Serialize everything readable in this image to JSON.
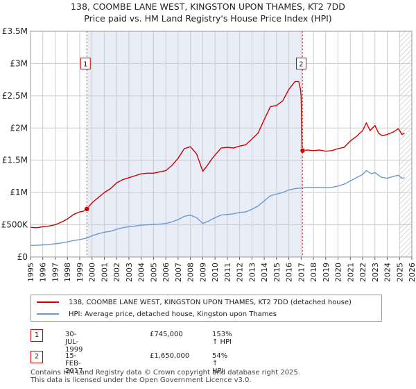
{
  "title_line1": "138, COOMBE LANE WEST, KINGSTON UPON THAMES, KT2 7DD",
  "title_line2": "Price paid vs. HM Land Registry's House Price Index (HPI)",
  "chart_data": {
    "type": "line",
    "x_min": 1995,
    "x_max": 2026,
    "y_min": 0,
    "y_max": 3500000,
    "y_ticks": [
      {
        "value": 0,
        "label": "£0"
      },
      {
        "value": 500000,
        "label": "£500K"
      },
      {
        "value": 1000000,
        "label": "£1M"
      },
      {
        "value": 1500000,
        "label": "£1.5M"
      },
      {
        "value": 2000000,
        "label": "£2M"
      },
      {
        "value": 2500000,
        "label": "£2.5M"
      },
      {
        "value": 3000000,
        "label": "£3M"
      },
      {
        "value": 3500000,
        "label": "£3.5M"
      }
    ],
    "x_ticks": [
      "1995",
      "1996",
      "1997",
      "1998",
      "1999",
      "2000",
      "2001",
      "2002",
      "2003",
      "2004",
      "2005",
      "2006",
      "2007",
      "2008",
      "2009",
      "2010",
      "2011",
      "2012",
      "2013",
      "2014",
      "2015",
      "2016",
      "2017",
      "2018",
      "2019",
      "2020",
      "2021",
      "2022",
      "2023",
      "2024",
      "2025",
      "2026"
    ],
    "shaded_range": [
      1999.58,
      2017.12
    ],
    "hatched_from": 2025.0,
    "series": [
      {
        "name": "138, COOMBE LANE WEST, KINGSTON UPON THAMES, KT2 7DD (detached house)",
        "color": "#cc0000",
        "points": [
          [
            1995.0,
            460000
          ],
          [
            1995.5,
            455000
          ],
          [
            1996.0,
            470000
          ],
          [
            1996.5,
            480000
          ],
          [
            1997.0,
            500000
          ],
          [
            1997.5,
            540000
          ],
          [
            1998.0,
            590000
          ],
          [
            1998.5,
            660000
          ],
          [
            1999.0,
            700000
          ],
          [
            1999.3,
            710000
          ],
          [
            1999.58,
            745000
          ],
          [
            2000.0,
            840000
          ],
          [
            2000.5,
            920000
          ],
          [
            2001.0,
            1000000
          ],
          [
            2001.5,
            1060000
          ],
          [
            2002.0,
            1150000
          ],
          [
            2002.5,
            1200000
          ],
          [
            2003.0,
            1230000
          ],
          [
            2003.5,
            1260000
          ],
          [
            2004.0,
            1290000
          ],
          [
            2004.5,
            1300000
          ],
          [
            2005.0,
            1300000
          ],
          [
            2005.5,
            1320000
          ],
          [
            2006.0,
            1340000
          ],
          [
            2006.5,
            1420000
          ],
          [
            2007.0,
            1530000
          ],
          [
            2007.5,
            1680000
          ],
          [
            2008.0,
            1710000
          ],
          [
            2008.5,
            1600000
          ],
          [
            2009.0,
            1330000
          ],
          [
            2009.3,
            1400000
          ],
          [
            2009.7,
            1510000
          ],
          [
            2010.0,
            1580000
          ],
          [
            2010.5,
            1690000
          ],
          [
            2011.0,
            1700000
          ],
          [
            2011.5,
            1690000
          ],
          [
            2012.0,
            1720000
          ],
          [
            2012.5,
            1740000
          ],
          [
            2013.0,
            1830000
          ],
          [
            2013.5,
            1920000
          ],
          [
            2014.0,
            2130000
          ],
          [
            2014.5,
            2330000
          ],
          [
            2015.0,
            2350000
          ],
          [
            2015.5,
            2420000
          ],
          [
            2016.0,
            2600000
          ],
          [
            2016.5,
            2720000
          ],
          [
            2016.8,
            2720000
          ],
          [
            2016.95,
            2600000
          ],
          [
            2017.0,
            2500000
          ],
          [
            2017.08,
            1700000
          ],
          [
            2017.12,
            1650000
          ],
          [
            2017.5,
            1660000
          ],
          [
            2018.0,
            1650000
          ],
          [
            2018.5,
            1660000
          ],
          [
            2019.0,
            1640000
          ],
          [
            2019.5,
            1650000
          ],
          [
            2020.0,
            1680000
          ],
          [
            2020.5,
            1700000
          ],
          [
            2021.0,
            1800000
          ],
          [
            2021.5,
            1870000
          ],
          [
            2022.0,
            1960000
          ],
          [
            2022.3,
            2080000
          ],
          [
            2022.6,
            1960000
          ],
          [
            2023.0,
            2040000
          ],
          [
            2023.3,
            1920000
          ],
          [
            2023.6,
            1880000
          ],
          [
            2024.0,
            1900000
          ],
          [
            2024.5,
            1940000
          ],
          [
            2024.9,
            1990000
          ],
          [
            2025.2,
            1900000
          ],
          [
            2025.4,
            1920000
          ]
        ]
      },
      {
        "name": "HPI: Average price, detached house, Kingston upon Thames",
        "color": "#6a9acb",
        "points": [
          [
            1995.0,
            180000
          ],
          [
            1995.5,
            182000
          ],
          [
            1996.0,
            188000
          ],
          [
            1996.5,
            195000
          ],
          [
            1997.0,
            205000
          ],
          [
            1997.5,
            218000
          ],
          [
            1998.0,
            235000
          ],
          [
            1998.5,
            255000
          ],
          [
            1999.0,
            270000
          ],
          [
            1999.58,
            294000
          ],
          [
            2000.0,
            330000
          ],
          [
            2000.5,
            360000
          ],
          [
            2001.0,
            385000
          ],
          [
            2001.5,
            400000
          ],
          [
            2002.0,
            430000
          ],
          [
            2002.5,
            455000
          ],
          [
            2003.0,
            470000
          ],
          [
            2003.5,
            480000
          ],
          [
            2004.0,
            495000
          ],
          [
            2004.5,
            500000
          ],
          [
            2005.0,
            505000
          ],
          [
            2005.5,
            510000
          ],
          [
            2006.0,
            520000
          ],
          [
            2006.5,
            545000
          ],
          [
            2007.0,
            580000
          ],
          [
            2007.5,
            630000
          ],
          [
            2008.0,
            650000
          ],
          [
            2008.5,
            610000
          ],
          [
            2009.0,
            520000
          ],
          [
            2009.5,
            560000
          ],
          [
            2010.0,
            610000
          ],
          [
            2010.5,
            650000
          ],
          [
            2011.0,
            660000
          ],
          [
            2011.5,
            670000
          ],
          [
            2012.0,
            690000
          ],
          [
            2012.5,
            700000
          ],
          [
            2013.0,
            740000
          ],
          [
            2013.5,
            790000
          ],
          [
            2014.0,
            870000
          ],
          [
            2014.5,
            950000
          ],
          [
            2015.0,
            975000
          ],
          [
            2015.5,
            1000000
          ],
          [
            2016.0,
            1040000
          ],
          [
            2016.5,
            1060000
          ],
          [
            2017.12,
            1070000
          ],
          [
            2017.5,
            1080000
          ],
          [
            2018.0,
            1080000
          ],
          [
            2018.5,
            1080000
          ],
          [
            2019.0,
            1075000
          ],
          [
            2019.5,
            1080000
          ],
          [
            2020.0,
            1100000
          ],
          [
            2020.5,
            1130000
          ],
          [
            2021.0,
            1180000
          ],
          [
            2021.5,
            1230000
          ],
          [
            2022.0,
            1280000
          ],
          [
            2022.3,
            1340000
          ],
          [
            2022.7,
            1290000
          ],
          [
            2023.0,
            1310000
          ],
          [
            2023.5,
            1240000
          ],
          [
            2024.0,
            1220000
          ],
          [
            2024.5,
            1250000
          ],
          [
            2024.9,
            1270000
          ],
          [
            2025.2,
            1220000
          ],
          [
            2025.4,
            1230000
          ]
        ]
      }
    ],
    "markers": [
      {
        "label": "1",
        "x": 1999.58,
        "y": 745000,
        "box_value": 3000000
      },
      {
        "label": "2",
        "x": 2017.12,
        "y": 1650000,
        "box_value": 3000000
      }
    ]
  },
  "legend": [
    {
      "label": "138, COOMBE LANE WEST, KINGSTON UPON THAMES, KT2 7DD (detached house)",
      "color": "#cc0000"
    },
    {
      "label": "HPI: Average price, detached house, Kingston upon Thames",
      "color": "#6a9acb"
    }
  ],
  "transactions": [
    {
      "num": "1",
      "date": "30-JUL-1999",
      "price": "£745,000",
      "hpi": "153% ↑ HPI"
    },
    {
      "num": "2",
      "date": "15-FEB-2017",
      "price": "£1,650,000",
      "hpi": "54% ↑ HPI"
    }
  ],
  "footer": {
    "line1": "Contains HM Land Registry data © Crown copyright and database right 2025.",
    "line2": "This data is licensed under the Open Government Licence v3.0."
  }
}
